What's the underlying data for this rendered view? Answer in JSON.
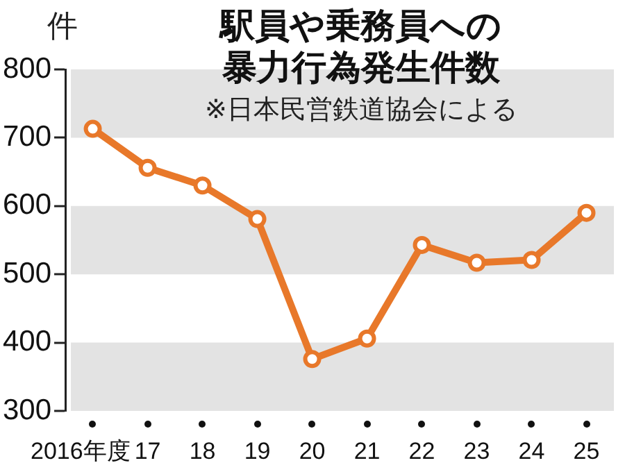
{
  "chart_data": {
    "type": "line",
    "title": "駅員や乗務員への暴力行為発生件数",
    "ylabel": "件",
    "annotations": [
      "※日本民営鉄道協会による"
    ],
    "categories": [
      "2016年度",
      "17",
      "18",
      "19",
      "20",
      "21",
      "22",
      "23",
      "24",
      "25"
    ],
    "series": [
      {
        "color": "#e8782a",
        "values": [
          713,
          656,
          630,
          581,
          376,
          406,
          543,
          517,
          521,
          590
        ]
      }
    ],
    "ylim": [
      300,
      800
    ],
    "yticks": [
      300,
      400,
      500,
      600,
      700,
      800
    ],
    "grid": false,
    "legend": false,
    "marker": "circle",
    "line_style": "solid",
    "bands": [
      {
        "axis": "y",
        "from": 700,
        "to": 800,
        "color": "#e3e3e3"
      },
      {
        "axis": "y",
        "from": 500,
        "to": 600,
        "color": "#e3e3e3"
      },
      {
        "axis": "y",
        "from": 300,
        "to": 400,
        "color": "#e3e3e3"
      }
    ]
  }
}
